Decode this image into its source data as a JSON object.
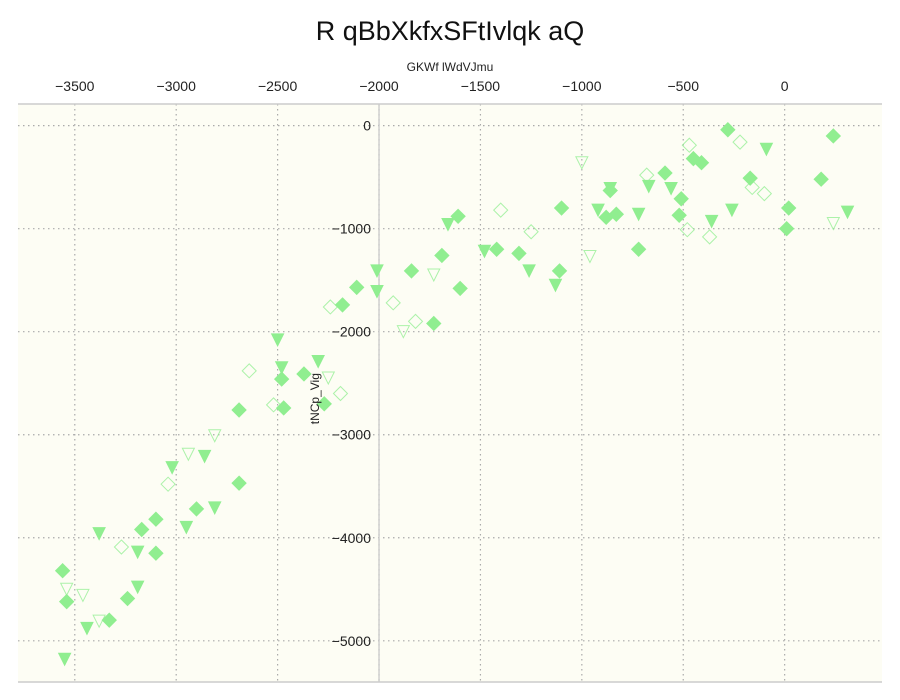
{
  "chart_data": {
    "type": "scatter",
    "title": "R qBbXkfxSFtIvlqk aQ",
    "xlabel": "GKWf lWdVJmu",
    "ylabel": "tNCp_Vig",
    "x_axis_position": "top",
    "y_axis_crossing_x": -2000,
    "xlim": [
      -3780,
      480
    ],
    "ylim": [
      -5400,
      210
    ],
    "x_ticks": [
      -3500,
      -3000,
      -2500,
      -2000,
      -1500,
      -1000,
      -500,
      0
    ],
    "y_ticks": [
      0,
      -1000,
      -2000,
      -3000,
      -4000,
      -5000
    ],
    "grid": true,
    "legend": "none",
    "colors": {
      "background": "#fdfdf4",
      "marker": "#90ee90",
      "grid": "#aaaaaa",
      "spine": "#cccccc"
    },
    "series": [
      {
        "marker": "diamond-filled",
        "points": [
          [
            -3560,
            -4320
          ],
          [
            -3540,
            -4620
          ],
          [
            -3330,
            -4800
          ],
          [
            -3240,
            -4590
          ],
          [
            -3170,
            -3920
          ],
          [
            -3100,
            -3820
          ],
          [
            -3100,
            -4150
          ],
          [
            -2900,
            -3720
          ],
          [
            -2690,
            -3470
          ],
          [
            -2690,
            -2760
          ],
          [
            -2480,
            -2460
          ],
          [
            -2470,
            -2740
          ],
          [
            -2370,
            -2410
          ],
          [
            -2270,
            -2700
          ],
          [
            -2180,
            -1740
          ],
          [
            -2110,
            -1570
          ],
          [
            -1840,
            -1410
          ],
          [
            -1730,
            -1920
          ],
          [
            -1690,
            -1260
          ],
          [
            -1610,
            -880
          ],
          [
            -1600,
            -1580
          ],
          [
            -1420,
            -1200
          ],
          [
            -1310,
            -1240
          ],
          [
            -1110,
            -1410
          ],
          [
            -1100,
            -800
          ],
          [
            -880,
            -890
          ],
          [
            -860,
            -630
          ],
          [
            -830,
            -860
          ],
          [
            -720,
            -1200
          ],
          [
            -590,
            -460
          ],
          [
            -520,
            -870
          ],
          [
            -510,
            -710
          ],
          [
            -450,
            -320
          ],
          [
            -410,
            -360
          ],
          [
            -280,
            -40
          ],
          [
            -170,
            -510
          ],
          [
            10,
            -1000
          ],
          [
            20,
            -800
          ],
          [
            180,
            -520
          ],
          [
            240,
            -100
          ]
        ]
      },
      {
        "marker": "triangle-down-filled",
        "points": [
          [
            -3550,
            -5170
          ],
          [
            -3440,
            -4870
          ],
          [
            -3380,
            -3950
          ],
          [
            -3190,
            -4130
          ],
          [
            -3190,
            -4470
          ],
          [
            -3020,
            -3310
          ],
          [
            -2950,
            -3890
          ],
          [
            -2860,
            -3200
          ],
          [
            -2810,
            -3700
          ],
          [
            -2500,
            -2070
          ],
          [
            -2480,
            -2340
          ],
          [
            -2300,
            -2280
          ],
          [
            -2010,
            -1600
          ],
          [
            -2010,
            -1400
          ],
          [
            -1660,
            -950
          ],
          [
            -1480,
            -1210
          ],
          [
            -1260,
            -1400
          ],
          [
            -1130,
            -1540
          ],
          [
            -920,
            -810
          ],
          [
            -860,
            -600
          ],
          [
            -720,
            -850
          ],
          [
            -670,
            -580
          ],
          [
            -560,
            -600
          ],
          [
            -360,
            -920
          ],
          [
            -260,
            -810
          ],
          [
            -90,
            -220
          ],
          [
            310,
            -830
          ]
        ]
      },
      {
        "marker": "diamond-open",
        "points": [
          [
            -3270,
            -4090
          ],
          [
            -3040,
            -3480
          ],
          [
            -2640,
            -2380
          ],
          [
            -2520,
            -2710
          ],
          [
            -2240,
            -1760
          ],
          [
            -2190,
            -2600
          ],
          [
            -1930,
            -1720
          ],
          [
            -1820,
            -1900
          ],
          [
            -1400,
            -820
          ],
          [
            -1250,
            -1030
          ],
          [
            -680,
            -480
          ],
          [
            -480,
            -1010
          ],
          [
            -470,
            -190
          ],
          [
            -370,
            -1080
          ],
          [
            -220,
            -160
          ],
          [
            -160,
            -600
          ],
          [
            -100,
            -660
          ]
        ]
      },
      {
        "marker": "triangle-down-open",
        "points": [
          [
            -3540,
            -4490
          ],
          [
            -3460,
            -4550
          ],
          [
            -3380,
            -4800
          ],
          [
            -2940,
            -3180
          ],
          [
            -2810,
            -3000
          ],
          [
            -2250,
            -2440
          ],
          [
            -1880,
            -1990
          ],
          [
            -1730,
            -1440
          ],
          [
            -1000,
            -350
          ],
          [
            -960,
            -1260
          ],
          [
            240,
            -940
          ]
        ]
      }
    ]
  }
}
